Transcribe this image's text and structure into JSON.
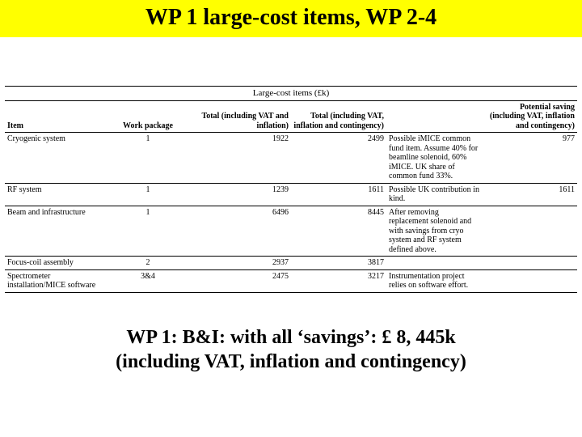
{
  "title": "WP 1 large-cost items, WP 2-4",
  "table": {
    "caption": "Large-cost items (£k)",
    "columns": {
      "item": "Item",
      "wp": "Work package",
      "tot1": "Total (including VAT and inflation)",
      "tot2": "Total (including VAT, inflation and contingency)",
      "notes": "",
      "save": "Potential saving (including VAT, inflation and contingency)"
    },
    "rows": [
      {
        "item": "Cryogenic system",
        "wp": "1",
        "tot1": "1922",
        "tot2": "2499",
        "notes": "Possible iMICE common fund item. Assume 40% for beamline solenoid, 60% iMICE. UK share of common fund 33%.",
        "save": "977"
      },
      {
        "item": "RF system",
        "wp": "1",
        "tot1": "1239",
        "tot2": "1611",
        "notes": "Possible UK contribution in kind.",
        "save": "1611"
      },
      {
        "item": "Beam and infrastructure",
        "wp": "1",
        "tot1": "6496",
        "tot2": "8445",
        "notes": "After removing replacement solenoid and with savings from cryo system and RF system defined above.",
        "save": ""
      },
      {
        "item": "Focus-coil assembly",
        "wp": "2",
        "tot1": "2937",
        "tot2": "3817",
        "notes": "",
        "save": ""
      },
      {
        "item": "Spectrometer installation/MICE software",
        "wp": "3&4",
        "tot1": "2475",
        "tot2": "3217",
        "notes": "Instrumentation project relies on software effort.",
        "save": ""
      }
    ]
  },
  "footer_line1": "WP 1: B&I: with all ‘savings’: £ 8, 445k",
  "footer_line2": "(including VAT, inflation and contingency)",
  "colors": {
    "title_bg": "#ffff00",
    "page_bg": "#ffffff",
    "border": "#000000",
    "text": "#000000"
  }
}
